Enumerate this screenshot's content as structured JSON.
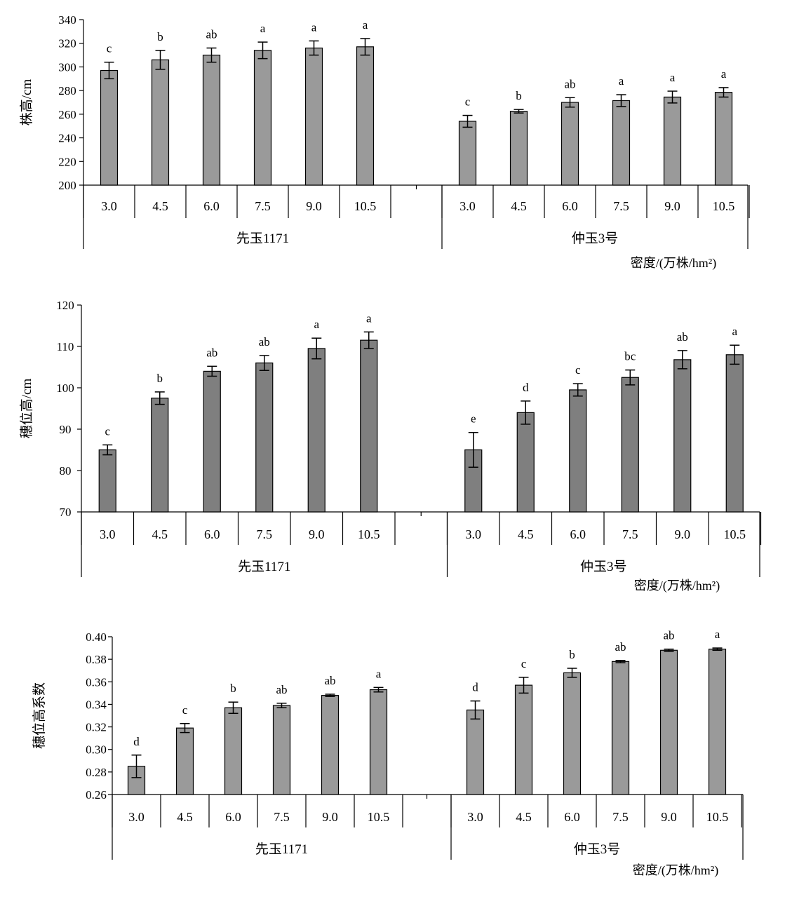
{
  "x_axis_label": "密度/(万株/hm²)",
  "chart_data": [
    {
      "type": "bar",
      "ylabel": "株高/cm",
      "xlabel": "密度/(万株/hm²)",
      "ylim": [
        200,
        340
      ],
      "yticks": [
        "200",
        "220",
        "240",
        "260",
        "280",
        "300",
        "320",
        "340"
      ],
      "bar_color": "#9a9a9a",
      "groups": [
        {
          "name": "先玉1171",
          "categories": [
            "3.0",
            "4.5",
            "6.0",
            "7.5",
            "9.0",
            "10.5"
          ],
          "values": [
            297,
            306,
            310,
            314,
            316,
            317
          ],
          "errors": [
            7,
            8,
            6,
            7,
            6,
            7
          ],
          "letters": [
            "c",
            "b",
            "ab",
            "a",
            "a",
            "a"
          ]
        },
        {
          "name": "仲玉3号",
          "categories": [
            "3.0",
            "4.5",
            "6.0",
            "7.5",
            "9.0",
            "10.5"
          ],
          "values": [
            254,
            262.5,
            270,
            271.5,
            274.5,
            278.5
          ],
          "errors": [
            5,
            1.5,
            4,
            5,
            5,
            4
          ],
          "letters": [
            "c",
            "b",
            "ab",
            "a",
            "a",
            "a"
          ]
        }
      ]
    },
    {
      "type": "bar",
      "ylabel": "穗位高/cm",
      "xlabel": "密度/(万株/hm²)",
      "ylim": [
        70,
        120
      ],
      "yticks": [
        "70",
        "80",
        "90",
        "100",
        "110",
        "120"
      ],
      "bar_color": "#7f7f7f",
      "groups": [
        {
          "name": "先玉1171",
          "categories": [
            "3.0",
            "4.5",
            "6.0",
            "7.5",
            "9.0",
            "10.5"
          ],
          "values": [
            85,
            97.5,
            104,
            106,
            109.5,
            111.5
          ],
          "errors": [
            1.2,
            1.5,
            1.2,
            1.8,
            2.5,
            2
          ],
          "letters": [
            "c",
            "b",
            "ab",
            "ab",
            "a",
            "a"
          ]
        },
        {
          "name": "仲玉3号",
          "categories": [
            "3.0",
            "4.5",
            "6.0",
            "7.5",
            "9.0",
            "10.5"
          ],
          "values": [
            85,
            94,
            99.5,
            102.5,
            106.8,
            108
          ],
          "errors": [
            4.2,
            2.8,
            1.5,
            1.8,
            2.2,
            2.3
          ],
          "letters": [
            "e",
            "d",
            "c",
            "bc",
            "ab",
            "a"
          ]
        }
      ]
    },
    {
      "type": "bar",
      "ylabel": "穗位高系数",
      "xlabel": "密度/(万株/hm²)",
      "ylim": [
        0.26,
        0.4
      ],
      "yticks": [
        "0.26",
        "0.28",
        "0.30",
        "0.32",
        "0.34",
        "0.36",
        "0.38",
        "0.40"
      ],
      "bar_color": "#9a9a9a",
      "groups": [
        {
          "name": "先玉1171",
          "categories": [
            "3.0",
            "4.5",
            "6.0",
            "7.5",
            "9.0",
            "10.5"
          ],
          "values": [
            0.285,
            0.319,
            0.337,
            0.339,
            0.348,
            0.353
          ],
          "errors": [
            0.01,
            0.004,
            0.005,
            0.002,
            0.001,
            0.002
          ],
          "letters": [
            "d",
            "c",
            "b",
            "ab",
            "ab",
            "a"
          ]
        },
        {
          "name": "仲玉3号",
          "categories": [
            "3.0",
            "4.5",
            "6.0",
            "7.5",
            "9.0",
            "10.5"
          ],
          "values": [
            0.335,
            0.357,
            0.368,
            0.378,
            0.388,
            0.389
          ],
          "errors": [
            0.008,
            0.007,
            0.004,
            0.001,
            0.001,
            0.001
          ],
          "letters": [
            "d",
            "c",
            "b",
            "ab",
            "ab",
            "a"
          ]
        }
      ]
    }
  ]
}
